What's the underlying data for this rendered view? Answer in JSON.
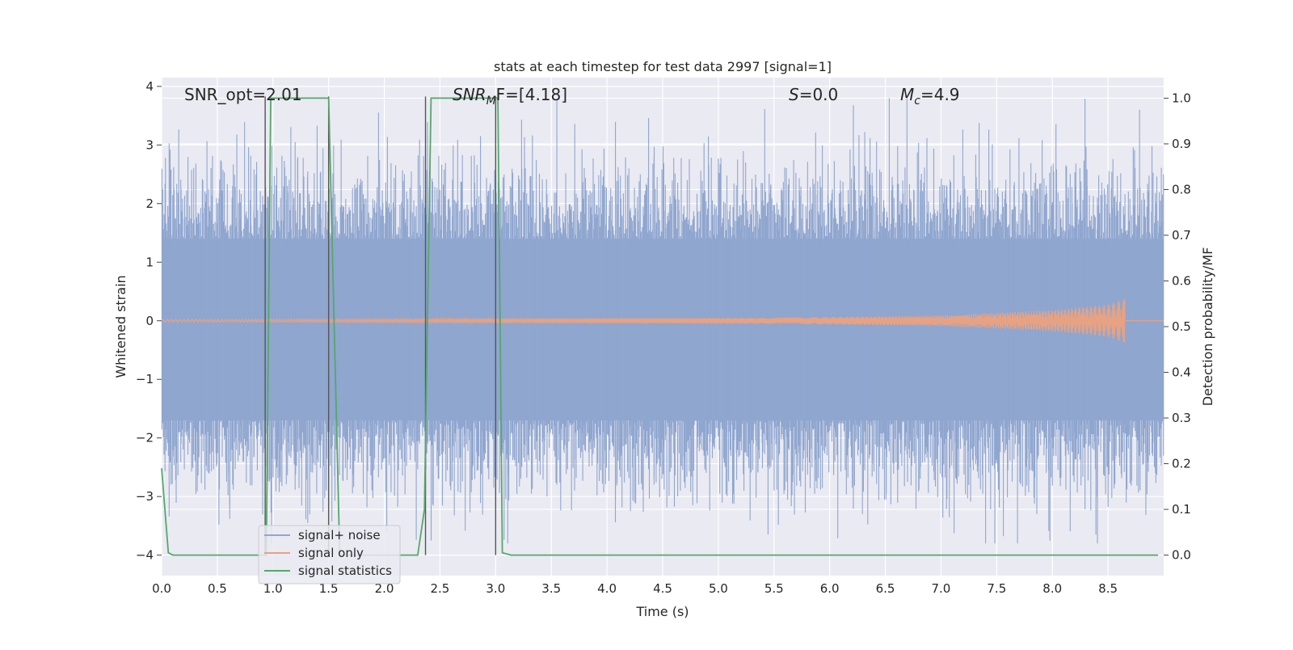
{
  "chart_data": {
    "type": "line",
    "title": "stats at each timestep for test data 2997 [signal=1]",
    "xlabel": "Time (s)",
    "ylabel": "Whitened strain",
    "ylabel_right": "Detection probability/MF",
    "xlim": [
      0.0,
      9.0
    ],
    "ylim": [
      -4.35,
      4.15
    ],
    "ylim_right": [
      -0.045,
      1.045
    ],
    "x_ticks": [
      "0.0",
      "0.5",
      "1.0",
      "1.5",
      "2.0",
      "2.5",
      "3.0",
      "3.5",
      "4.0",
      "4.5",
      "5.0",
      "5.5",
      "6.0",
      "6.5",
      "7.0",
      "7.5",
      "8.0",
      "8.5"
    ],
    "y_ticks": [
      "4",
      "3",
      "2",
      "1",
      "0",
      "−1",
      "−2",
      "−3",
      "−4"
    ],
    "y_ticks_right": [
      "1.0",
      "0.9",
      "0.8",
      "0.7",
      "0.6",
      "0.5",
      "0.4",
      "0.3",
      "0.2",
      "0.1",
      "0.0"
    ],
    "grid": true,
    "legend_position": "lower-left",
    "annotations": {
      "snr_opt": "SNR_opt=2.01",
      "snr_mf_main": "SNR",
      "snr_mf_sub": "M",
      "snr_mf_rest": "F=[4.18]",
      "s_main": "S",
      "s_rest": "=0.0",
      "mc_main": "M",
      "mc_sub": "c",
      "mc_rest": "=4.9"
    },
    "series": [
      {
        "name": "signal+ noise",
        "color": "#8fa6cf",
        "x_range": [
          0.0,
          9.0
        ],
        "typical_band": [
          -1.7,
          1.4
        ],
        "peak_max": 3.8,
        "peak_min": -3.8
      },
      {
        "name": "signal only",
        "color": "#e6a283",
        "x_range": [
          0.0,
          8.65
        ],
        "envelope": [
          {
            "x": 0.0,
            "amp": 0.02
          },
          {
            "x": 5.5,
            "amp": 0.05
          },
          {
            "x": 7.0,
            "amp": 0.09
          },
          {
            "x": 8.0,
            "amp": 0.18
          },
          {
            "x": 8.5,
            "amp": 0.28
          },
          {
            "x": 8.65,
            "amp": 0.38
          }
        ]
      },
      {
        "name": "signal statistics",
        "color": "#55a868",
        "axis": "right",
        "x": [
          0.0,
          0.06,
          0.1,
          0.9,
          0.94,
          0.98,
          1.0,
          1.5,
          1.6,
          1.64,
          2.3,
          2.36,
          2.42,
          2.46,
          3.0,
          3.02,
          3.06,
          3.14,
          8.95
        ],
        "y": [
          0.19,
          0.005,
          0.0,
          0.0,
          0.0,
          1.0,
          1.0,
          1.0,
          0.0,
          0.0,
          0.0,
          0.1,
          1.0,
          1.0,
          1.0,
          1.0,
          0.005,
          0.0,
          0.0
        ]
      }
    ],
    "vertical_lines": {
      "color": "#555555",
      "x": [
        0.93,
        1.5,
        2.37,
        3.0
      ]
    }
  },
  "legend": {
    "items": [
      {
        "label": "signal+ noise",
        "color": "#8fa6cf"
      },
      {
        "label": "signal only",
        "color": "#e6a283"
      },
      {
        "label": "signal statistics",
        "color": "#55a868"
      }
    ]
  },
  "colors": {
    "plot_background": "#eaeaf2",
    "grid": "#ffffff",
    "text": "#262626"
  }
}
